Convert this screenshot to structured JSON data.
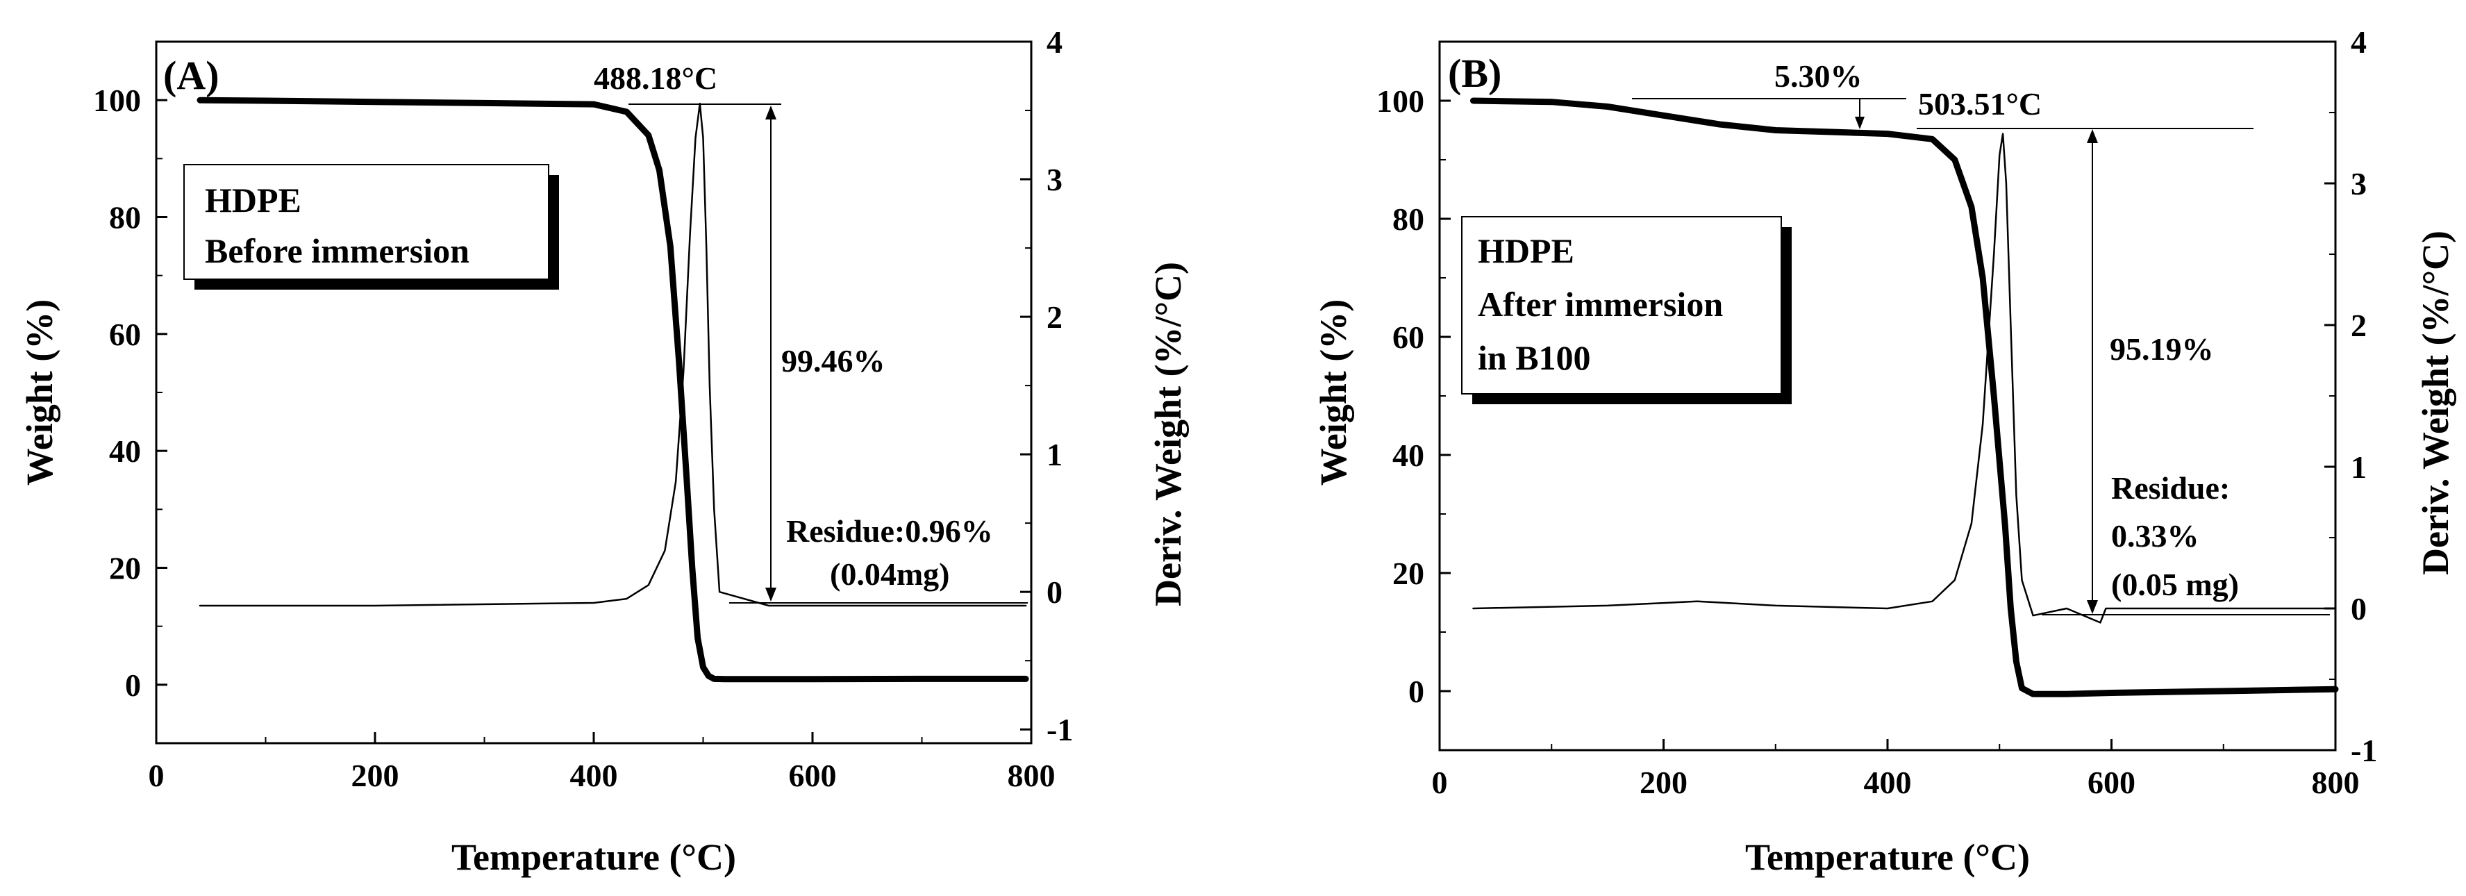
{
  "chart_data": [
    {
      "type": "line",
      "panel_label": "(A)",
      "xlabel": "Temperature (°C)",
      "ylabel": "Weight (%)",
      "y2label": "Deriv. Weight (%/°C)",
      "xlim": [
        0,
        800
      ],
      "ylim": [
        -10,
        110
      ],
      "y2lim": [
        -1.1,
        4.0
      ],
      "x_ticks": [
        "0",
        "200",
        "400",
        "600",
        "800"
      ],
      "y_ticks": [
        "0",
        "20",
        "40",
        "60",
        "80",
        "100"
      ],
      "y2_ticks": [
        "-1",
        "0",
        "1",
        "2",
        "3",
        "4"
      ],
      "legend_lines": [
        "HDPE",
        "Before immersion"
      ],
      "annotations": {
        "peak": "488.18°C",
        "loss": "99.46%",
        "residue_1": "Residue:0.96%",
        "residue_2": "(0.04mg)"
      },
      "series": [
        {
          "name": "Weight",
          "axis": "left",
          "x": [
            40,
            100,
            200,
            300,
            400,
            430,
            450,
            460,
            470,
            478,
            485,
            490,
            495,
            500,
            505,
            510,
            520,
            600,
            700,
            795
          ],
          "values": [
            100,
            99.9,
            99.7,
            99.5,
            99.3,
            98.0,
            94.0,
            88.0,
            75.0,
            55.0,
            35.0,
            20.0,
            8.0,
            3.0,
            1.5,
            1.0,
            0.96,
            0.96,
            1.0,
            1.0
          ]
        },
        {
          "name": "Deriv. Weight",
          "axis": "right",
          "x": [
            40,
            200,
            400,
            430,
            450,
            465,
            475,
            482,
            488,
            493,
            497,
            500,
            503,
            506,
            510,
            515,
            560,
            700,
            795
          ],
          "values": [
            -0.1,
            -0.1,
            -0.08,
            -0.05,
            0.05,
            0.3,
            0.8,
            1.6,
            2.6,
            3.3,
            3.55,
            3.3,
            2.5,
            1.5,
            0.6,
            0.0,
            -0.1,
            -0.1,
            -0.1
          ]
        }
      ]
    },
    {
      "type": "line",
      "panel_label": "(B)",
      "xlabel": "Temperature (°C)",
      "ylabel": "Weight (%)",
      "y2label": "Deriv. Weight (%/°C)",
      "xlim": [
        0,
        800
      ],
      "ylim": [
        -10,
        110
      ],
      "y2lim": [
        -1.0,
        4.0
      ],
      "x_ticks": [
        "0",
        "200",
        "400",
        "600",
        "800"
      ],
      "y_ticks": [
        "0",
        "20",
        "40",
        "60",
        "80",
        "100"
      ],
      "y2_ticks": [
        "-1",
        "0",
        "1",
        "2",
        "3",
        "4"
      ],
      "legend_lines": [
        "HDPE",
        "After immersion",
        "in B100"
      ],
      "annotations": {
        "step_loss": "5.30%",
        "peak": "503.51°C",
        "loss": "95.19%",
        "residue_1": "Residue:",
        "residue_2": "0.33%",
        "residue_3": "(0.05 mg)"
      },
      "series": [
        {
          "name": "Weight",
          "axis": "left",
          "x": [
            30,
            100,
            150,
            200,
            250,
            300,
            350,
            400,
            440,
            460,
            475,
            485,
            495,
            505,
            510,
            515,
            520,
            530,
            560,
            600,
            700,
            800
          ],
          "values": [
            100,
            99.8,
            99.0,
            97.5,
            96.0,
            95.0,
            94.7,
            94.4,
            93.5,
            90.0,
            82.0,
            70.0,
            50.0,
            28.0,
            14.0,
            5.0,
            0.5,
            -0.5,
            -0.5,
            -0.3,
            0.0,
            0.33
          ]
        },
        {
          "name": "Deriv. Weight",
          "axis": "right",
          "x": [
            30,
            150,
            230,
            300,
            400,
            440,
            460,
            475,
            485,
            495,
            500,
            503,
            506,
            510,
            515,
            520,
            530,
            560,
            590,
            595,
            610,
            700,
            800
          ],
          "values": [
            0.0,
            0.02,
            0.05,
            0.02,
            0.0,
            0.05,
            0.2,
            0.6,
            1.3,
            2.5,
            3.2,
            3.35,
            3.0,
            2.0,
            0.8,
            0.2,
            -0.05,
            0.0,
            -0.1,
            0.0,
            0.0,
            0.0,
            0.0
          ]
        }
      ]
    }
  ]
}
